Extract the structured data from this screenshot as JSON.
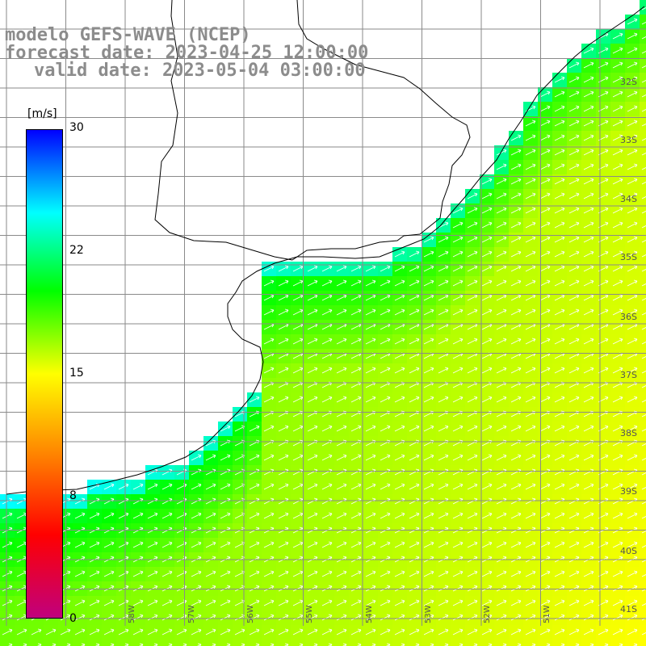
{
  "title": {
    "model": "modelo GEFS-WAVE (NCEP)",
    "forecast": "forecast date: 2023-04-25 12:00:00",
    "valid": "valid date: 2023-05-04 03:00:00"
  },
  "colorbar": {
    "unit": "[m/s]",
    "ticks": [
      "30",
      "22",
      "15",
      "8",
      "0"
    ],
    "tick_values": [
      30,
      22,
      15,
      8,
      0
    ],
    "min": 0,
    "max": 30,
    "colors": [
      "#0000ff",
      "#00ffff",
      "#00ff00",
      "#ffff00",
      "#ff8000",
      "#ff0000",
      "#c0007e"
    ]
  },
  "map": {
    "lat_labels": [
      "32S",
      "33S",
      "34S",
      "35S",
      "36S",
      "37S",
      "38S",
      "39S",
      "40S",
      "41S"
    ],
    "lon_labels": [
      "58W",
      "57W",
      "56W",
      "55W",
      "54W",
      "53W",
      "52W",
      "51W"
    ],
    "land_color": "#ffffff",
    "grid": true,
    "arrow_direction": "northeast"
  }
}
